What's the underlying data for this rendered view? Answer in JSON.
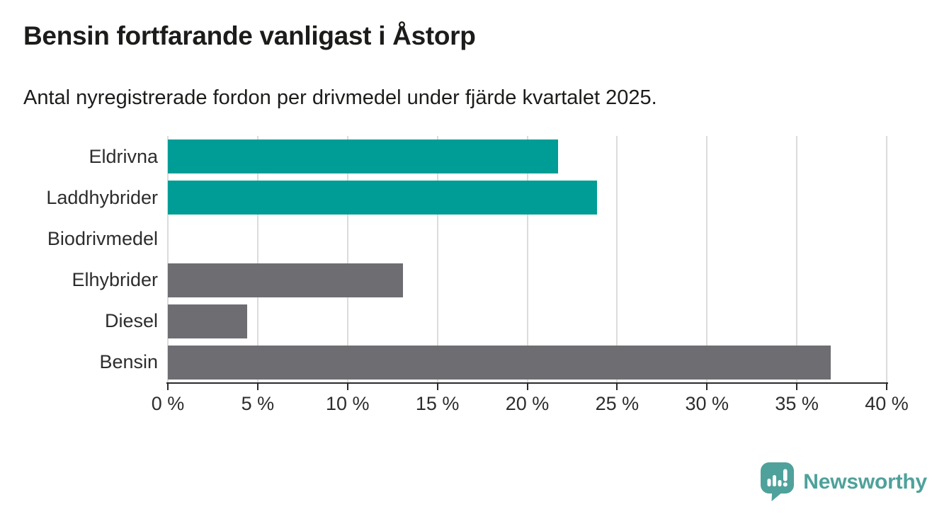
{
  "chart_data": {
    "type": "bar",
    "orientation": "horizontal",
    "title": "Bensin fortfarande vanligast i Åstorp",
    "subtitle": "Antal nyregistrerade fordon per drivmedel under fjärde kvartalet 2025.",
    "categories": [
      "Eldrivna",
      "Laddhybrider",
      "Biodrivmedel",
      "Elhybrider",
      "Diesel",
      "Bensin"
    ],
    "values": [
      21.7,
      23.9,
      0,
      13.1,
      4.4,
      36.9
    ],
    "unit": "%",
    "xlabel": "",
    "ylabel": "",
    "xlim": [
      0,
      40
    ],
    "x_tick_step": 5,
    "x_tick_labels": [
      "0 %",
      "5 %",
      "10 %",
      "15 %",
      "20 %",
      "25 %",
      "30 %",
      "35 %",
      "40 %"
    ],
    "grid": true,
    "legend": "none",
    "bar_colors": [
      "#009D96",
      "#009D96",
      "#6D6D72",
      "#6D6D72",
      "#6D6D72",
      "#6D6D72"
    ]
  },
  "branding": {
    "logo_text": "Newsworthy",
    "logo_color": "#4FA19B"
  },
  "colors": {
    "background": "#FFFFFF",
    "title_text": "#1C1C1A",
    "label_text": "#2D2D2D",
    "grid": "#DCDCDC",
    "axis": "#2B2B2B",
    "accent_teal": "#009D96",
    "bar_gray": "#6D6D72"
  }
}
